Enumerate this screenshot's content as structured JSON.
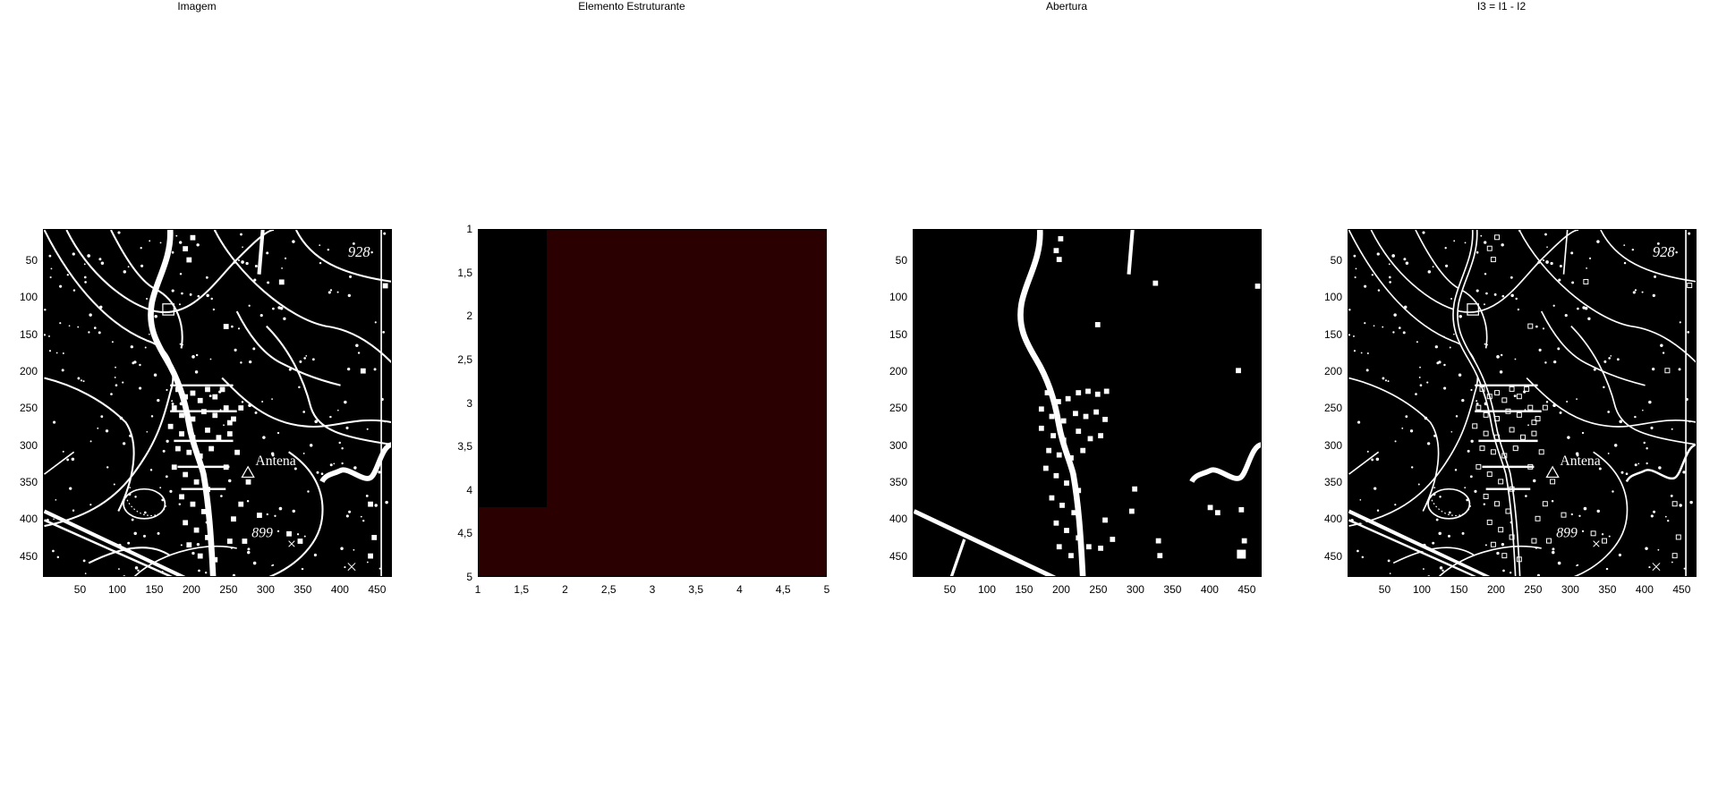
{
  "panels": [
    {
      "title": "Imagem",
      "kind": "map",
      "variant": "full",
      "x_ticks": [
        "50",
        "100",
        "150",
        "200",
        "250",
        "300",
        "350",
        "400",
        "450"
      ],
      "y_ticks": [
        "50",
        "100",
        "150",
        "200",
        "250",
        "300",
        "350",
        "400",
        "450"
      ],
      "text_marks": [
        "928",
        "Antena",
        "899"
      ]
    },
    {
      "title": "Elemento Estruturante",
      "kind": "structuring-element",
      "x_ticks": [
        "1",
        "1,5",
        "2",
        "2,5",
        "3",
        "3,5",
        "4",
        "4,5",
        "5"
      ],
      "y_ticks": [
        "1",
        "1,5",
        "2",
        "2,5",
        "3",
        "3,5",
        "4",
        "4,5",
        "5"
      ],
      "colors": {
        "zero": "#000000",
        "one": "#2a0000"
      }
    },
    {
      "title": "Abertura",
      "kind": "map",
      "variant": "opening",
      "x_ticks": [
        "50",
        "100",
        "150",
        "200",
        "250",
        "300",
        "350",
        "400",
        "450"
      ],
      "y_ticks": [
        "50",
        "100",
        "150",
        "200",
        "250",
        "300",
        "350",
        "400",
        "450"
      ]
    },
    {
      "title": "I3 = I1 - I2",
      "kind": "map",
      "variant": "difference",
      "x_ticks": [
        "50",
        "100",
        "150",
        "200",
        "250",
        "300",
        "350",
        "400",
        "450"
      ],
      "y_ticks": [
        "50",
        "100",
        "150",
        "200",
        "250",
        "300",
        "350",
        "400",
        "450"
      ],
      "text_marks": [
        "928",
        "Antena",
        "899"
      ]
    }
  ]
}
